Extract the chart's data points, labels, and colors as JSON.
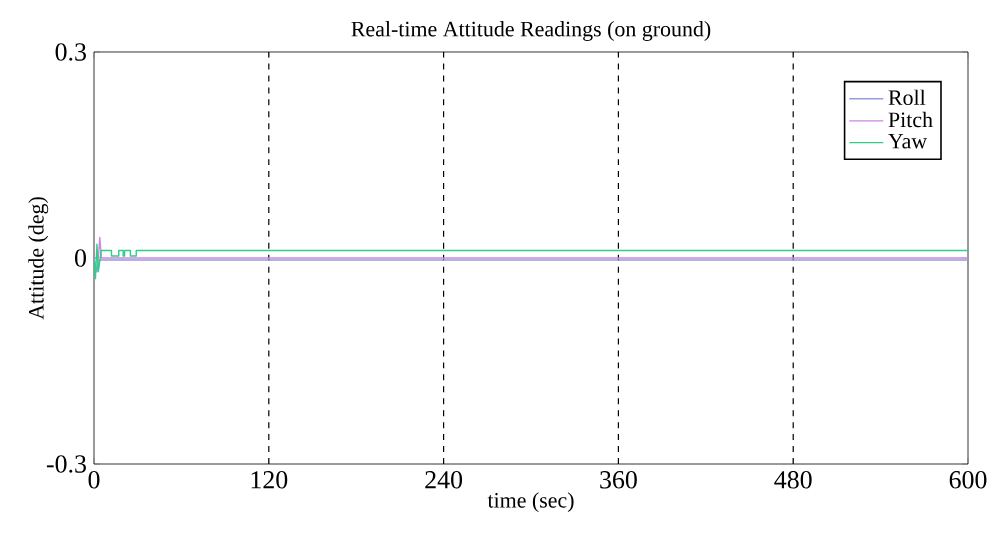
{
  "chart_data": {
    "type": "line",
    "title": "Real-time Attitude Readings (on ground)",
    "xlabel": "time (sec)",
    "ylabel": "Attitude (deg)",
    "xlim": [
      0,
      600
    ],
    "ylim": [
      -0.3,
      0.3
    ],
    "xticks": [
      0,
      120,
      240,
      360,
      480,
      600
    ],
    "yticks": [
      -0.3,
      0,
      0.3
    ],
    "legend": "top right",
    "series": [
      {
        "name": "Roll",
        "color": "#9999dd",
        "x": [
          0,
          2,
          3,
          600
        ],
        "values": [
          0,
          -0.02,
          -0.003,
          -0.003
        ]
      },
      {
        "name": "Pitch",
        "color": "#cc88dd",
        "x": [
          0,
          3,
          4,
          5,
          600
        ],
        "values": [
          0,
          0,
          0.03,
          0,
          0
        ]
      },
      {
        "name": "Yaw",
        "color": "#33cc88",
        "x": [
          0,
          1,
          2,
          3,
          5,
          12,
          12,
          17,
          17,
          20,
          20,
          21,
          21,
          25,
          25,
          29,
          29,
          600
        ],
        "values": [
          0,
          -0.03,
          0.02,
          -0.02,
          0.011,
          0.011,
          0.003,
          0.003,
          0.011,
          0.011,
          0.003,
          0.003,
          0.011,
          0.011,
          0.003,
          0.003,
          0.011,
          0.011
        ]
      }
    ],
    "ref_lines": [
      {
        "axis": "x",
        "value": 120,
        "color": "#000000",
        "line_style": "dashed"
      },
      {
        "axis": "x",
        "value": 240,
        "color": "#000000",
        "line_style": "dashed"
      },
      {
        "axis": "x",
        "value": 360,
        "color": "#000000",
        "line_style": "dashed"
      },
      {
        "axis": "x",
        "value": 480,
        "color": "#000000",
        "line_style": "dashed"
      }
    ]
  }
}
